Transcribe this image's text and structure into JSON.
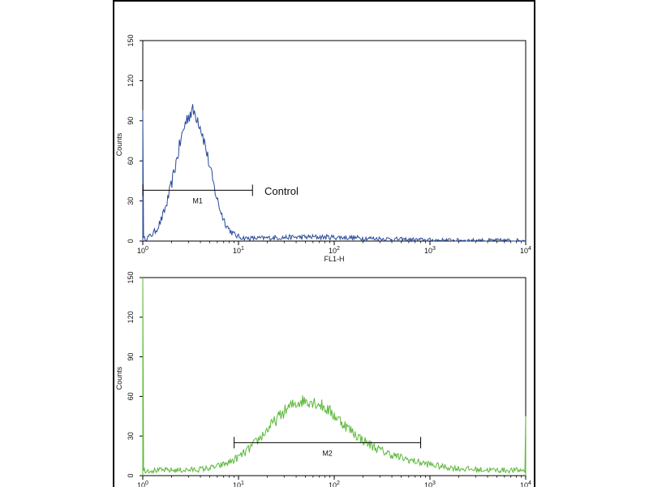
{
  "chart_data": [
    {
      "type": "line",
      "xscale": "log",
      "xlim": [
        1,
        10000
      ],
      "ylim": [
        0,
        150
      ],
      "xlabel": "FL1-H",
      "ylabel": "Counts",
      "x_ticks": [
        1,
        10,
        100,
        1000,
        10000
      ],
      "x_tick_labels": [
        {
          "base": "10",
          "exp": "0"
        },
        {
          "base": "10",
          "exp": "1"
        },
        {
          "base": "10",
          "exp": "2"
        },
        {
          "base": "10",
          "exp": "3"
        },
        {
          "base": "10",
          "exp": "4"
        }
      ],
      "y_ticks": [
        "0",
        "30",
        "60",
        "90",
        "120",
        "150"
      ],
      "color": "#2a4a9a",
      "annotation": "Control",
      "gate": {
        "label": "M1",
        "x_start": 1,
        "x_end": 14,
        "y": 38
      },
      "peaks": [
        {
          "x": 3.3,
          "y": 96,
          "sigma": 0.17
        },
        {
          "x": 60,
          "y": 2.5,
          "sigma": 0.6
        }
      ],
      "baseline": 0.5,
      "left_edge_spike": 98,
      "right_edge_spike": 0
    },
    {
      "type": "line",
      "xscale": "log",
      "xlim": [
        1,
        10000
      ],
      "ylim": [
        0,
        150
      ],
      "xlabel": "",
      "ylabel": "Counts",
      "x_ticks": [
        1,
        10,
        100,
        1000,
        10000
      ],
      "x_tick_labels": [
        {
          "base": "10",
          "exp": "0"
        },
        {
          "base": "10",
          "exp": "1"
        },
        {
          "base": "10",
          "exp": "2"
        },
        {
          "base": "10",
          "exp": "3"
        },
        {
          "base": "10",
          "exp": "4"
        }
      ],
      "y_ticks": [
        "0",
        "30",
        "60",
        "90",
        "120",
        "150"
      ],
      "color": "#5cb83a",
      "annotation": "",
      "gate": {
        "label": "M2",
        "x_start": 9,
        "x_end": 800,
        "y": 25
      },
      "peaks": [
        {
          "x": 48,
          "y": 50,
          "sigma": 0.38
        },
        {
          "x": 260,
          "y": 10,
          "sigma": 0.45
        }
      ],
      "baseline": 4,
      "left_edge_spike": 150,
      "right_edge_spike": 45
    }
  ]
}
